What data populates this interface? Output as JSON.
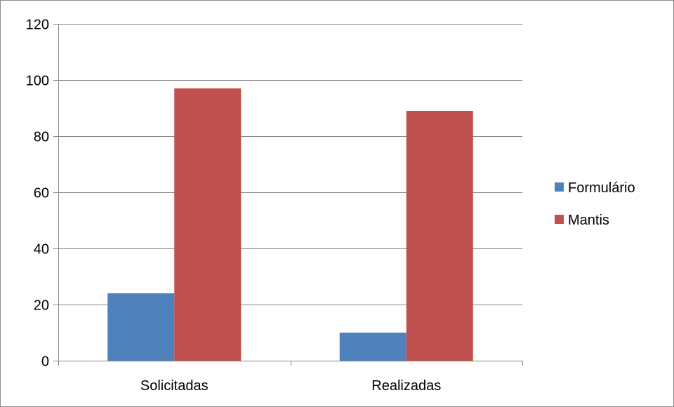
{
  "chart_data": {
    "type": "bar",
    "categories": [
      "Solicitadas",
      "Realizadas"
    ],
    "series": [
      {
        "name": "Formulário",
        "color": "#4f81bd",
        "values": [
          24,
          10
        ]
      },
      {
        "name": "Mantis",
        "color": "#c0504d",
        "values": [
          97,
          89
        ]
      }
    ],
    "ylim": [
      0,
      120
    ],
    "yticks": [
      0,
      20,
      40,
      60,
      80,
      100,
      120
    ],
    "grid": true,
    "legend_position": "right"
  }
}
